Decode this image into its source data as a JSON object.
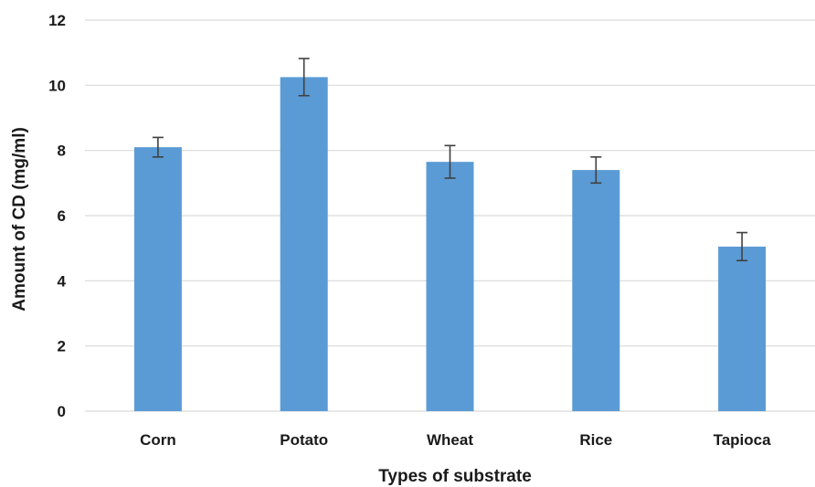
{
  "chart_data": {
    "type": "bar",
    "title": "",
    "xlabel": "Types of substrate",
    "ylabel": "Amount of CD (mg/ml)",
    "categories": [
      "Corn",
      "Potato",
      "Wheat",
      "Rice",
      "Tapioca"
    ],
    "values": [
      8.1,
      10.25,
      7.65,
      7.4,
      5.05
    ],
    "error": [
      0.3,
      0.57,
      0.5,
      0.4,
      0.43
    ],
    "ylim": [
      0,
      12
    ],
    "yticks": [
      "0",
      "2",
      "4",
      "6",
      "8",
      "10",
      "12"
    ],
    "grid": true,
    "legend": "none",
    "colors": {
      "bar": "#5b9bd5",
      "grid": "#d9d9d9",
      "error_bar": "#404040"
    }
  }
}
